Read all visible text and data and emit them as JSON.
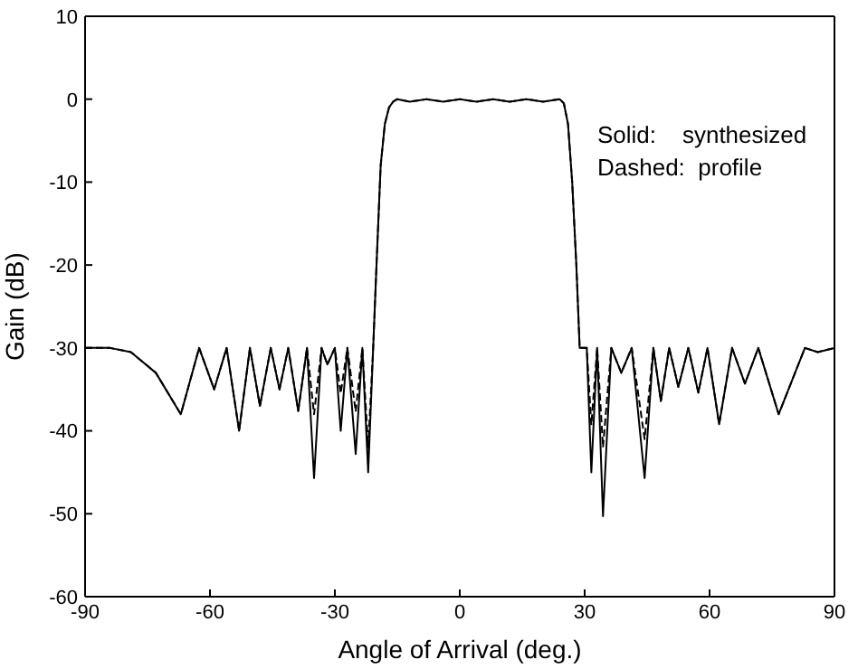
{
  "chart_data": {
    "type": "line",
    "xlabel": "Angle of Arrival (deg.)",
    "ylabel": "Gain (dB)",
    "annotations": [
      "Solid:    synthesized",
      "Dashed:  profile"
    ],
    "x": [
      -90,
      -84,
      -79,
      -73,
      -67,
      -62.6,
      -59,
      -56,
      -53,
      -50.4,
      -48,
      -45.4,
      -43.3,
      -41.2,
      -38.8,
      -36.7,
      -35,
      -33.2,
      -31.8,
      -30,
      -28.6,
      -27,
      -25,
      -23.4,
      -22,
      -20.8,
      -20,
      -19,
      -18,
      -17,
      -16,
      -15,
      -12,
      -8,
      -4,
      0,
      4,
      8,
      12,
      16,
      20,
      24,
      25,
      26,
      27,
      28,
      28.8,
      30.5,
      31.6,
      33,
      34.4,
      36.4,
      38.8,
      41.3,
      44.4,
      46.5,
      48.3,
      50.3,
      52.5,
      54.9,
      57.3,
      59.5,
      62.3,
      65.4,
      68.5,
      71.7,
      76.6,
      82.9,
      86,
      90
    ],
    "series": [
      {
        "color": "#000000",
        "line_style": "solid",
        "values": [
          -30,
          -30,
          -30.5,
          -33,
          -38,
          -30,
          -35,
          -30,
          -40,
          -30,
          -37,
          -30,
          -35,
          -30,
          -37.6,
          -30,
          -45.7,
          -30,
          -32,
          -30,
          -40,
          -30,
          -42.8,
          -30,
          -45,
          -30,
          -20,
          -8,
          -3,
          -1,
          -0.3,
          0,
          -0.3,
          0,
          -0.3,
          0,
          -0.3,
          0,
          -0.3,
          0,
          -0.3,
          0,
          -0.5,
          -3,
          -10,
          -20,
          -30,
          -30,
          -45,
          -30,
          -50.3,
          -30,
          -33,
          -30,
          -45.7,
          -30,
          -36.4,
          -30,
          -34.7,
          -30,
          -35.4,
          -30,
          -39.2,
          -30,
          -34.3,
          -30,
          -38,
          -30,
          -30.5,
          -30
        ]
      },
      {
        "color": "#000000",
        "line_style": "dashed",
        "values": [
          -30,
          -30,
          -30.5,
          -33,
          -38,
          -30,
          -35,
          -30,
          -40,
          -30,
          -37,
          -30,
          -35,
          -30,
          -37.6,
          -30,
          -38,
          -30,
          -32,
          -30,
          -35.5,
          -30,
          -37.7,
          -30,
          -42,
          -30,
          -20,
          -8,
          -3,
          -1,
          -0.3,
          0,
          -0.3,
          0,
          -0.3,
          0,
          -0.3,
          0,
          -0.3,
          0,
          -0.3,
          0,
          -0.5,
          -3,
          -10,
          -20,
          -30,
          -30,
          -39.3,
          -30,
          -42,
          -30,
          -33,
          -30,
          -41,
          -30,
          -36.4,
          -30,
          -34.7,
          -30,
          -35.4,
          -30,
          -39.2,
          -30,
          -34.3,
          -30,
          -38,
          -30,
          -30.5,
          -30
        ]
      }
    ],
    "xlim": [
      -90,
      90
    ],
    "xticks": [
      -90,
      -60,
      -30,
      0,
      30,
      60,
      90
    ],
    "ylim": [
      -60,
      10
    ],
    "yticks": [
      -60,
      -50,
      -40,
      -30,
      -20,
      -10,
      0,
      10
    ]
  }
}
